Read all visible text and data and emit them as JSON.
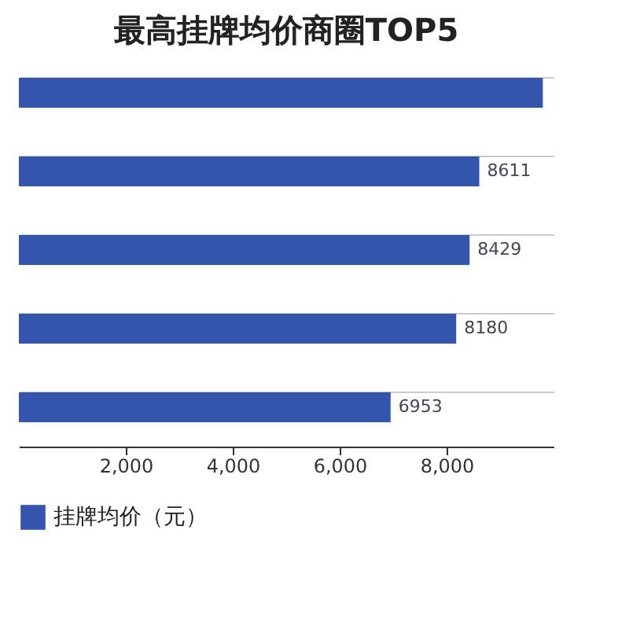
{
  "chart_data": {
    "type": "bar",
    "orientation": "horizontal",
    "title": "最高挂牌均价商圈TOP5",
    "categories": [
      null,
      null,
      null,
      null,
      null
    ],
    "series": [
      {
        "name": "挂牌均价（元）",
        "color": "#3355ae",
        "values": [
          9800,
          8611,
          8429,
          8180,
          6953
        ],
        "value_labels": [
          null,
          "8611",
          "8429",
          "8180",
          "6953"
        ]
      }
    ],
    "xlim": [
      0,
      10000
    ],
    "xticks": [
      {
        "value": 2000,
        "label": "2,000"
      },
      {
        "value": 4000,
        "label": "4,000"
      },
      {
        "value": 6000,
        "label": "6,000"
      },
      {
        "value": 8000,
        "label": "8,000"
      }
    ],
    "grid": "y",
    "legend": "bottom"
  }
}
